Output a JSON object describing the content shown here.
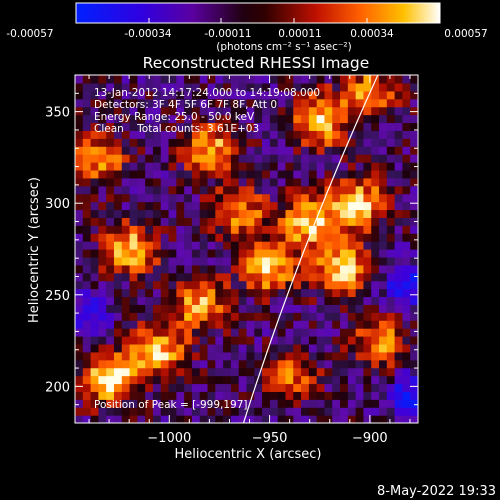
{
  "colorbar": {
    "ticks": [
      "-0.00057",
      "-0.00034",
      "-0.00011",
      "0.00011",
      "0.00034",
      "0.00057"
    ],
    "unit_label": "(photons cm⁻² s⁻¹ asec⁻²)",
    "min": -0.00057,
    "max": 0.00057
  },
  "chart_data": {
    "type": "heatmap",
    "title": "Reconstructed RHESSI Image",
    "xlabel": "Heliocentric X (arcsec)",
    "ylabel": "Heliocentric Y (arcsec)",
    "xlim": [
      -1047,
      -876
    ],
    "ylim": [
      180,
      370
    ],
    "x_ticks": [
      -1000,
      -950,
      -900
    ],
    "x_tick_labels": [
      "−1000",
      "−950",
      "−900"
    ],
    "y_ticks": [
      200,
      250,
      300,
      350
    ],
    "y_tick_labels": [
      "200",
      "250",
      "300",
      "350"
    ],
    "grid": false,
    "colormap": "rainbow-like: blue, purple, red, orange, yellow, white",
    "limb_line": [
      [
        -963,
        180
      ],
      [
        -896,
        370
      ]
    ],
    "peak": [
      -999,
      197
    ],
    "annotations": [
      "13-Jan-2012 14:17:24.000 to 14:19:08.000",
      "Detectors: 3F 4F 5F 6F 7F 8F, Att 0",
      "Energy Range: 25.0 - 50.0 keV",
      "Clean    Total counts: 3.61E+03",
      "Position of Peak = [-999,197]"
    ],
    "hot_regions": [
      {
        "x": -1030,
        "y": 205,
        "intensity": 1.0
      },
      {
        "x": -1005,
        "y": 220,
        "intensity": 0.8
      },
      {
        "x": -985,
        "y": 245,
        "intensity": 0.75
      },
      {
        "x": -1020,
        "y": 275,
        "intensity": 0.85
      },
      {
        "x": -1035,
        "y": 325,
        "intensity": 0.7
      },
      {
        "x": -980,
        "y": 330,
        "intensity": 0.75
      },
      {
        "x": -965,
        "y": 295,
        "intensity": 0.65
      },
      {
        "x": -950,
        "y": 265,
        "intensity": 0.8
      },
      {
        "x": -930,
        "y": 290,
        "intensity": 0.85
      },
      {
        "x": -905,
        "y": 300,
        "intensity": 0.8
      },
      {
        "x": -915,
        "y": 265,
        "intensity": 0.85
      },
      {
        "x": -925,
        "y": 345,
        "intensity": 0.85
      },
      {
        "x": -900,
        "y": 360,
        "intensity": 0.7
      },
      {
        "x": -895,
        "y": 225,
        "intensity": 0.7
      },
      {
        "x": -940,
        "y": 205,
        "intensity": 0.55
      }
    ],
    "cold_regions": [
      {
        "x": -882,
        "y": 255,
        "intensity": 0.55
      },
      {
        "x": -880,
        "y": 195,
        "intensity": 0.5
      },
      {
        "x": -1040,
        "y": 240,
        "intensity": 0.4
      }
    ]
  },
  "footer": {
    "timestamp": "8-May-2022 19:33"
  }
}
